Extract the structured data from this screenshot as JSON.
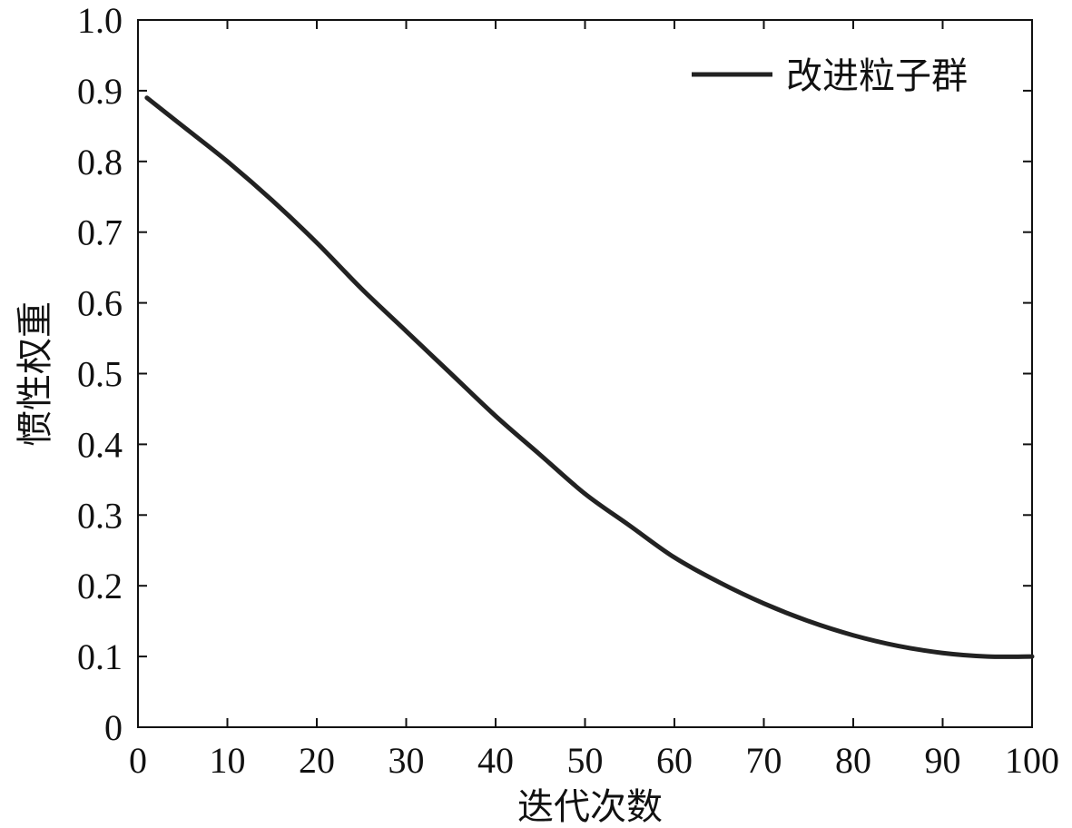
{
  "chart_data": {
    "type": "line",
    "title": "",
    "xlabel": "迭代次数",
    "ylabel": "惯性权重",
    "xlim": [
      0,
      100
    ],
    "ylim": [
      0,
      1.0
    ],
    "xticks": [
      "0",
      "10",
      "20",
      "30",
      "40",
      "50",
      "60",
      "70",
      "80",
      "90",
      "100"
    ],
    "yticks": [
      "0",
      "0.1",
      "0.2",
      "0.3",
      "0.4",
      "0.5",
      "0.6",
      "0.7",
      "0.8",
      "0.9",
      "1.0"
    ],
    "grid": false,
    "legend_position": "top-right",
    "series": [
      {
        "name": "改进粒子群",
        "color": "#222222",
        "x": [
          1,
          5,
          10,
          15,
          20,
          25,
          30,
          35,
          40,
          45,
          50,
          55,
          60,
          65,
          70,
          75,
          80,
          85,
          90,
          95,
          100
        ],
        "y": [
          0.89,
          0.85,
          0.8,
          0.745,
          0.685,
          0.62,
          0.56,
          0.5,
          0.44,
          0.385,
          0.33,
          0.285,
          0.24,
          0.205,
          0.175,
          0.15,
          0.13,
          0.115,
          0.105,
          0.1,
          0.1
        ]
      }
    ]
  }
}
